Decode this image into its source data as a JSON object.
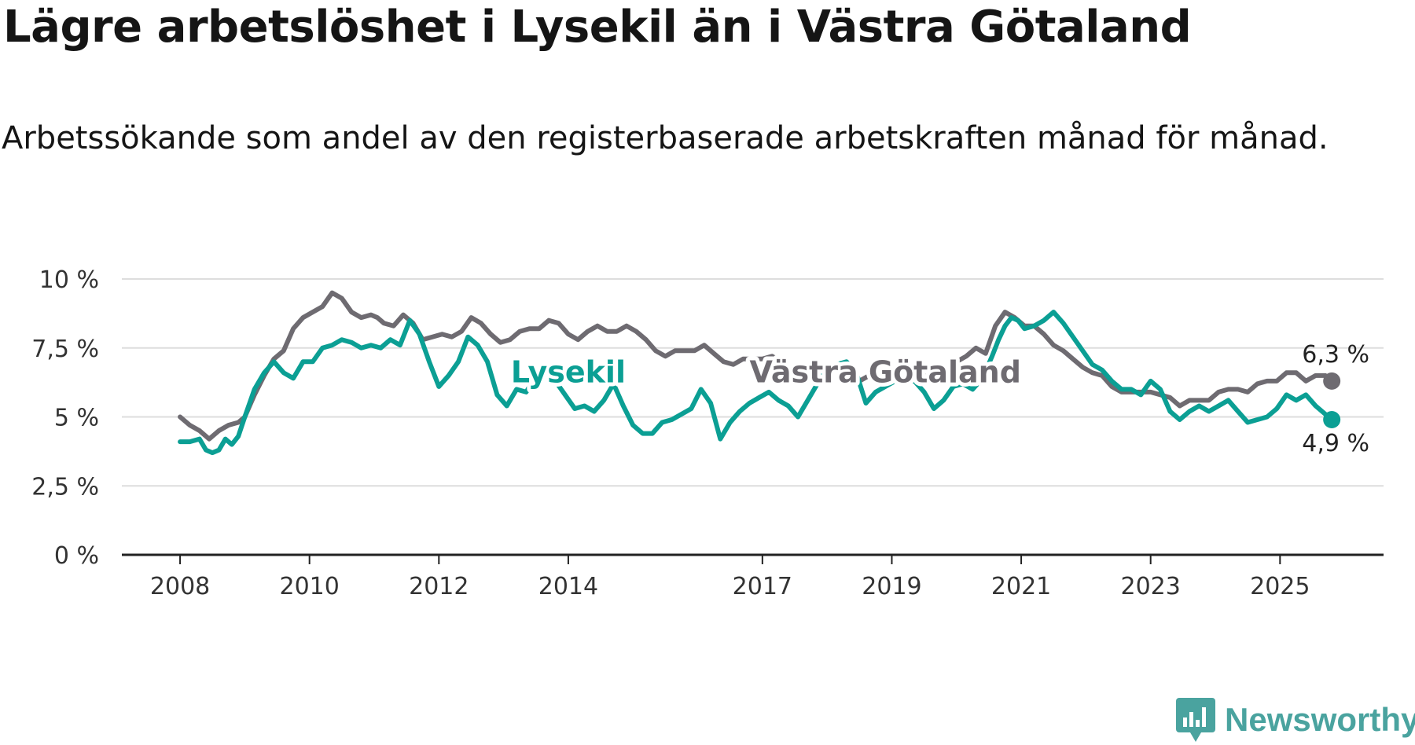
{
  "title": "Lägre arbetslöshet i Lysekil än i Västra Götaland",
  "subtitle": "Arbetssökande som andel av den registerbaserade arbetskraften månad för månad.",
  "brand": "Newsworthy",
  "colors": {
    "lysekil": "#0b9f94",
    "vg": "#6e6b71",
    "grid": "#dddddd",
    "axis": "#222222",
    "brand": "#4aa39f"
  },
  "chart_data": {
    "type": "line",
    "title": "Lägre arbetslöshet i Lysekil än i Västra Götaland",
    "xlabel": "",
    "ylabel": "",
    "ylim": [
      0,
      10
    ],
    "xlim": [
      2007.1,
      2026.6
    ],
    "y_ticks": [
      0,
      2.5,
      5,
      7.5,
      10
    ],
    "y_tick_labels": [
      "0 %",
      "2,5 %",
      "5 %",
      "7,5 %",
      "10 %"
    ],
    "x_ticks": [
      2008,
      2010,
      2012,
      2014,
      2017,
      2019,
      2021,
      2023,
      2025
    ],
    "x_tick_labels": [
      "2008",
      "2010",
      "2012",
      "2014",
      "2017",
      "2019",
      "2021",
      "2023",
      "2025"
    ],
    "grid": true,
    "series": [
      {
        "name": "Västra Götaland",
        "color": "#6e6b71",
        "end_label": "6,3 %",
        "points": [
          [
            2008.0,
            5.0
          ],
          [
            2008.15,
            4.7
          ],
          [
            2008.3,
            4.5
          ],
          [
            2008.45,
            4.2
          ],
          [
            2008.6,
            4.5
          ],
          [
            2008.75,
            4.7
          ],
          [
            2008.9,
            4.8
          ],
          [
            2009.0,
            5.0
          ],
          [
            2009.15,
            5.8
          ],
          [
            2009.3,
            6.5
          ],
          [
            2009.45,
            7.1
          ],
          [
            2009.6,
            7.4
          ],
          [
            2009.75,
            8.2
          ],
          [
            2009.9,
            8.6
          ],
          [
            2010.05,
            8.8
          ],
          [
            2010.2,
            9.0
          ],
          [
            2010.35,
            9.5
          ],
          [
            2010.5,
            9.3
          ],
          [
            2010.65,
            8.8
          ],
          [
            2010.8,
            8.6
          ],
          [
            2010.95,
            8.7
          ],
          [
            2011.05,
            8.6
          ],
          [
            2011.15,
            8.4
          ],
          [
            2011.3,
            8.3
          ],
          [
            2011.45,
            8.7
          ],
          [
            2011.6,
            8.4
          ],
          [
            2011.75,
            7.8
          ],
          [
            2011.9,
            7.9
          ],
          [
            2012.05,
            8.0
          ],
          [
            2012.2,
            7.9
          ],
          [
            2012.35,
            8.1
          ],
          [
            2012.5,
            8.6
          ],
          [
            2012.65,
            8.4
          ],
          [
            2012.8,
            8.0
          ],
          [
            2012.95,
            7.7
          ],
          [
            2013.1,
            7.8
          ],
          [
            2013.25,
            8.1
          ],
          [
            2013.4,
            8.2
          ],
          [
            2013.55,
            8.2
          ],
          [
            2013.7,
            8.5
          ],
          [
            2013.85,
            8.4
          ],
          [
            2014.0,
            8.0
          ],
          [
            2014.15,
            7.8
          ],
          [
            2014.3,
            8.1
          ],
          [
            2014.45,
            8.3
          ],
          [
            2014.6,
            8.1
          ],
          [
            2014.75,
            8.1
          ],
          [
            2014.9,
            8.3
          ],
          [
            2015.05,
            8.1
          ],
          [
            2015.2,
            7.8
          ],
          [
            2015.35,
            7.4
          ],
          [
            2015.5,
            7.2
          ],
          [
            2015.65,
            7.4
          ],
          [
            2015.8,
            7.4
          ],
          [
            2015.95,
            7.4
          ],
          [
            2016.1,
            7.6
          ],
          [
            2016.25,
            7.3
          ],
          [
            2016.4,
            7.0
          ],
          [
            2016.55,
            6.9
          ],
          [
            2016.7,
            7.1
          ],
          [
            2016.85,
            7.1
          ],
          [
            2017.0,
            7.1
          ],
          [
            2017.15,
            7.2
          ],
          [
            2017.3,
            7.0
          ],
          [
            2017.45,
            6.6
          ],
          [
            2017.6,
            6.6
          ],
          [
            2017.75,
            6.7
          ],
          [
            2017.9,
            6.8
          ],
          [
            2018.05,
            6.9
          ],
          [
            2018.2,
            6.8
          ],
          [
            2018.35,
            6.6
          ],
          [
            2018.5,
            6.3
          ],
          [
            2018.65,
            6.5
          ],
          [
            2018.8,
            6.4
          ],
          [
            2018.95,
            6.5
          ],
          [
            2019.1,
            6.6
          ],
          [
            2019.25,
            6.5
          ],
          [
            2019.4,
            6.4
          ],
          [
            2019.55,
            6.5
          ],
          [
            2019.7,
            6.6
          ],
          [
            2019.85,
            6.8
          ],
          [
            2020.0,
            7.0
          ],
          [
            2020.15,
            7.2
          ],
          [
            2020.3,
            7.5
          ],
          [
            2020.45,
            7.3
          ],
          [
            2020.6,
            8.3
          ],
          [
            2020.75,
            8.8
          ],
          [
            2020.9,
            8.6
          ],
          [
            2021.05,
            8.3
          ],
          [
            2021.2,
            8.3
          ],
          [
            2021.35,
            8.0
          ],
          [
            2021.5,
            7.6
          ],
          [
            2021.65,
            7.4
          ],
          [
            2021.8,
            7.1
          ],
          [
            2021.95,
            6.8
          ],
          [
            2022.1,
            6.6
          ],
          [
            2022.25,
            6.5
          ],
          [
            2022.4,
            6.1
          ],
          [
            2022.55,
            5.9
          ],
          [
            2022.7,
            5.9
          ],
          [
            2022.85,
            5.9
          ],
          [
            2023.0,
            5.9
          ],
          [
            2023.15,
            5.8
          ],
          [
            2023.3,
            5.7
          ],
          [
            2023.45,
            5.4
          ],
          [
            2023.6,
            5.6
          ],
          [
            2023.75,
            5.6
          ],
          [
            2023.9,
            5.6
          ],
          [
            2024.05,
            5.9
          ],
          [
            2024.2,
            6.0
          ],
          [
            2024.35,
            6.0
          ],
          [
            2024.5,
            5.9
          ],
          [
            2024.65,
            6.2
          ],
          [
            2024.8,
            6.3
          ],
          [
            2024.95,
            6.3
          ],
          [
            2025.1,
            6.6
          ],
          [
            2025.25,
            6.6
          ],
          [
            2025.4,
            6.3
          ],
          [
            2025.55,
            6.5
          ],
          [
            2025.7,
            6.5
          ],
          [
            2025.8,
            6.3
          ]
        ]
      },
      {
        "name": "Lysekil",
        "color": "#0b9f94",
        "end_label": "4,9 %",
        "points": [
          [
            2008.0,
            4.1
          ],
          [
            2008.15,
            4.1
          ],
          [
            2008.3,
            4.2
          ],
          [
            2008.4,
            3.8
          ],
          [
            2008.5,
            3.7
          ],
          [
            2008.6,
            3.8
          ],
          [
            2008.7,
            4.2
          ],
          [
            2008.8,
            4.0
          ],
          [
            2008.9,
            4.3
          ],
          [
            2009.0,
            5.0
          ],
          [
            2009.15,
            6.0
          ],
          [
            2009.3,
            6.6
          ],
          [
            2009.45,
            7.0
          ],
          [
            2009.6,
            6.6
          ],
          [
            2009.75,
            6.4
          ],
          [
            2009.9,
            7.0
          ],
          [
            2010.05,
            7.0
          ],
          [
            2010.2,
            7.5
          ],
          [
            2010.35,
            7.6
          ],
          [
            2010.5,
            7.8
          ],
          [
            2010.65,
            7.7
          ],
          [
            2010.8,
            7.5
          ],
          [
            2010.95,
            7.6
          ],
          [
            2011.1,
            7.5
          ],
          [
            2011.25,
            7.8
          ],
          [
            2011.4,
            7.6
          ],
          [
            2011.55,
            8.5
          ],
          [
            2011.7,
            8.0
          ],
          [
            2011.85,
            7.0
          ],
          [
            2012.0,
            6.1
          ],
          [
            2012.15,
            6.5
          ],
          [
            2012.3,
            7.0
          ],
          [
            2012.45,
            7.9
          ],
          [
            2012.6,
            7.6
          ],
          [
            2012.75,
            7.0
          ],
          [
            2012.9,
            5.8
          ],
          [
            2013.05,
            5.4
          ],
          [
            2013.2,
            6.0
          ],
          [
            2013.35,
            5.9
          ],
          [
            2013.5,
            6.5
          ],
          [
            2013.65,
            6.8
          ],
          [
            2013.8,
            6.3
          ],
          [
            2013.95,
            5.8
          ],
          [
            2014.1,
            5.3
          ],
          [
            2014.25,
            5.4
          ],
          [
            2014.4,
            5.2
          ],
          [
            2014.55,
            5.6
          ],
          [
            2014.7,
            6.2
          ],
          [
            2014.85,
            5.4
          ],
          [
            2015.0,
            4.7
          ],
          [
            2015.15,
            4.4
          ],
          [
            2015.3,
            4.4
          ],
          [
            2015.45,
            4.8
          ],
          [
            2015.6,
            4.9
          ],
          [
            2015.75,
            5.1
          ],
          [
            2015.9,
            5.3
          ],
          [
            2016.05,
            6.0
          ],
          [
            2016.2,
            5.5
          ],
          [
            2016.35,
            4.2
          ],
          [
            2016.5,
            4.8
          ],
          [
            2016.65,
            5.2
          ],
          [
            2016.8,
            5.5
          ],
          [
            2016.95,
            5.7
          ],
          [
            2017.1,
            5.9
          ],
          [
            2017.25,
            5.6
          ],
          [
            2017.4,
            5.4
          ],
          [
            2017.55,
            5.0
          ],
          [
            2017.7,
            5.6
          ],
          [
            2017.85,
            6.2
          ],
          [
            2018.0,
            6.8
          ],
          [
            2018.15,
            6.9
          ],
          [
            2018.3,
            7.0
          ],
          [
            2018.45,
            6.6
          ],
          [
            2018.6,
            5.5
          ],
          [
            2018.75,
            5.9
          ],
          [
            2018.9,
            6.1
          ],
          [
            2019.05,
            6.3
          ],
          [
            2019.2,
            6.3
          ],
          [
            2019.35,
            6.3
          ],
          [
            2019.5,
            5.9
          ],
          [
            2019.65,
            5.3
          ],
          [
            2019.8,
            5.6
          ],
          [
            2019.95,
            6.1
          ],
          [
            2020.1,
            6.2
          ],
          [
            2020.25,
            6.0
          ],
          [
            2020.4,
            6.4
          ],
          [
            2020.55,
            7.2
          ],
          [
            2020.65,
            7.8
          ],
          [
            2020.75,
            8.3
          ],
          [
            2020.85,
            8.6
          ],
          [
            2020.95,
            8.5
          ],
          [
            2021.05,
            8.2
          ],
          [
            2021.2,
            8.3
          ],
          [
            2021.35,
            8.5
          ],
          [
            2021.5,
            8.8
          ],
          [
            2021.65,
            8.4
          ],
          [
            2021.8,
            7.9
          ],
          [
            2021.95,
            7.4
          ],
          [
            2022.1,
            6.9
          ],
          [
            2022.25,
            6.7
          ],
          [
            2022.4,
            6.3
          ],
          [
            2022.55,
            6.0
          ],
          [
            2022.7,
            6.0
          ],
          [
            2022.85,
            5.8
          ],
          [
            2023.0,
            6.3
          ],
          [
            2023.15,
            6.0
          ],
          [
            2023.3,
            5.2
          ],
          [
            2023.45,
            4.9
          ],
          [
            2023.6,
            5.2
          ],
          [
            2023.75,
            5.4
          ],
          [
            2023.9,
            5.2
          ],
          [
            2024.05,
            5.4
          ],
          [
            2024.2,
            5.6
          ],
          [
            2024.35,
            5.2
          ],
          [
            2024.5,
            4.8
          ],
          [
            2024.65,
            4.9
          ],
          [
            2024.8,
            5.0
          ],
          [
            2024.95,
            5.3
          ],
          [
            2025.1,
            5.8
          ],
          [
            2025.25,
            5.6
          ],
          [
            2025.4,
            5.8
          ],
          [
            2025.55,
            5.4
          ],
          [
            2025.7,
            5.1
          ],
          [
            2025.8,
            4.9
          ]
        ]
      }
    ],
    "annotations": [
      {
        "series": "Lysekil",
        "text": "Lysekil",
        "at": [
          2014.0,
          6.6
        ]
      },
      {
        "series": "Västra Götaland",
        "text": "Västra Götaland",
        "at": [
          2018.9,
          6.6
        ]
      }
    ]
  }
}
